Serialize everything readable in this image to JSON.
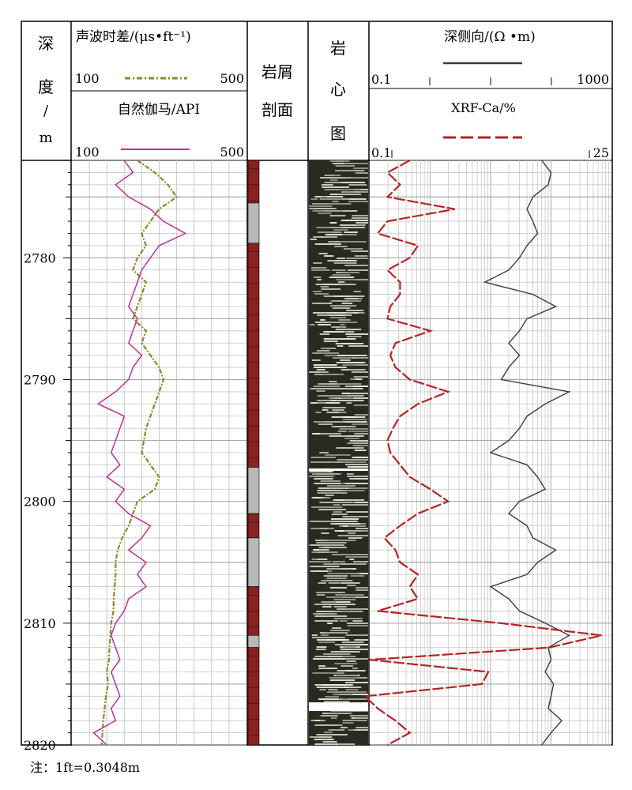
{
  "header": {
    "depth": {
      "lines": [
        "深",
        "度",
        "/",
        "m"
      ]
    },
    "track1": {
      "curve1_title": "声波时差/(μs•ft⁻¹)",
      "curve1_min": "100",
      "curve1_max": "500",
      "curve2_title": "自然伽马/API",
      "curve2_min": "100",
      "curve2_max": "500"
    },
    "cuttings": {
      "lines": [
        "岩屑",
        "剖面"
      ]
    },
    "core": {
      "lines": [
        "岩",
        "心",
        "图"
      ]
    },
    "track4": {
      "curve1_title": "深侧向/(Ω •m)",
      "curve1_min": "0.1",
      "curve1_max": "1000",
      "curve2_title": "XRF-Ca/%",
      "curve2_min": "0.1",
      "curve2_max": "25"
    }
  },
  "footnote": "注：1ft=0.3048m",
  "colors": {
    "acoustic": "#8a8a2a",
    "gamma": "#c0309a",
    "resistivity": "#3c3c3c",
    "xrf_ca": "#b82222",
    "lith_red": "#8a2020",
    "lith_grey": "#b8b8b8",
    "grid": "#c8c8c8"
  },
  "chart_data": {
    "type": "line",
    "depth_axis": {
      "label": "深度/m",
      "range": [
        2772,
        2820
      ],
      "ticks": [
        2780,
        2790,
        2800,
        2810,
        2820
      ]
    },
    "tracks": [
      {
        "name": "track1",
        "scale": "linear",
        "range": [
          100,
          500
        ],
        "series": [
          {
            "name": "声波时差",
            "unit": "μs/ft",
            "depth": [
              2772,
              2773,
              2774,
              2775,
              2776,
              2777,
              2778,
              2779,
              2780,
              2781,
              2782,
              2783,
              2784,
              2785,
              2786,
              2787,
              2788,
              2789,
              2790,
              2791,
              2792,
              2793,
              2794,
              2795,
              2796,
              2797,
              2798,
              2799,
              2800,
              2801,
              2802,
              2803,
              2804,
              2805,
              2806,
              2807,
              2808,
              2809,
              2810,
              2811,
              2812,
              2813,
              2814,
              2815,
              2816,
              2817,
              2818,
              2819,
              2820
            ],
            "values": [
              250,
              290,
              320,
              340,
              300,
              280,
              260,
              270,
              250,
              240,
              270,
              260,
              250,
              240,
              270,
              260,
              280,
              300,
              310,
              300,
              290,
              280,
              270,
              265,
              260,
              280,
              300,
              290,
              250,
              240,
              230,
              215,
              205,
              200,
              200,
              198,
              196,
              195,
              190,
              188,
              186,
              185,
              180,
              183,
              178,
              175,
              172,
              170,
              168
            ]
          },
          {
            "name": "自然伽马",
            "unit": "API",
            "depth": [
              2772,
              2773,
              2774,
              2775,
              2776,
              2777,
              2778,
              2779,
              2780,
              2781,
              2782,
              2783,
              2784,
              2785,
              2786,
              2787,
              2788,
              2789,
              2790,
              2791,
              2792,
              2793,
              2794,
              2795,
              2796,
              2797,
              2798,
              2799,
              2800,
              2801,
              2802,
              2803,
              2804,
              2805,
              2806,
              2807,
              2808,
              2809,
              2810,
              2811,
              2812,
              2813,
              2814,
              2815,
              2816,
              2817,
              2818,
              2819,
              2820
            ],
            "values": [
              220,
              240,
              200,
              230,
              280,
              310,
              360,
              300,
              280,
              260,
              250,
              240,
              230,
              250,
              240,
              230,
              260,
              240,
              230,
              200,
              160,
              220,
              210,
              200,
              190,
              210,
              180,
              220,
              200,
              230,
              280,
              260,
              230,
              270,
              250,
              270,
              230,
              220,
              200,
              190,
              200,
              210,
              190,
              200,
              210,
              190,
              200,
              150,
              180
            ]
          }
        ]
      },
      {
        "name": "track4",
        "scale": "log",
        "series": [
          {
            "name": "深侧向",
            "unit": "Ω·m",
            "range": [
              0.1,
              1000
            ],
            "depth": [
              2772,
              2773,
              2774,
              2775,
              2776,
              2777,
              2778,
              2779,
              2780,
              2781,
              2782,
              2783,
              2784,
              2785,
              2786,
              2787,
              2788,
              2789,
              2790,
              2791,
              2792,
              2793,
              2794,
              2795,
              2796,
              2797,
              2798,
              2799,
              2800,
              2801,
              2802,
              2803,
              2804,
              2805,
              2806,
              2807,
              2808,
              2809,
              2810,
              2811,
              2812,
              2813,
              2814,
              2815,
              2816,
              2817,
              2818,
              2819,
              2820
            ],
            "values": [
              70,
              100,
              90,
              50,
              40,
              50,
              60,
              40,
              30,
              20,
              8,
              50,
              120,
              40,
              30,
              20,
              30,
              20,
              15,
              200,
              80,
              40,
              30,
              20,
              10,
              40,
              60,
              80,
              30,
              20,
              40,
              50,
              120,
              60,
              40,
              10,
              20,
              30,
              80,
              200,
              90,
              100,
              80,
              110,
              100,
              90,
              150,
              100,
              70
            ]
          },
          {
            "name": "XRF-Ca",
            "unit": "%",
            "range": [
              0.1,
              25
            ],
            "depth": [
              2772,
              2773,
              2774,
              2775,
              2776,
              2777,
              2778,
              2779,
              2780,
              2781,
              2782,
              2783,
              2784,
              2785,
              2786,
              2787,
              2788,
              2789,
              2790,
              2791,
              2792,
              2793,
              2794,
              2795,
              2796,
              2797,
              2798,
              2799,
              2800,
              2801,
              2802,
              2803,
              2804,
              2805,
              2806,
              2807,
              2808,
              2809,
              2810,
              2811,
              2812,
              2813,
              2814,
              2815,
              2816,
              2817,
              2818,
              2819,
              2820
            ],
            "values": [
              0.25,
              0.15,
              0.2,
              0.15,
              0.7,
              0.15,
              0.12,
              0.3,
              0.25,
              0.15,
              0.2,
              0.2,
              0.16,
              0.15,
              0.4,
              0.18,
              0.16,
              0.18,
              0.25,
              0.6,
              0.3,
              0.2,
              0.17,
              0.15,
              0.16,
              0.2,
              0.25,
              0.4,
              0.6,
              0.3,
              0.2,
              0.14,
              0.18,
              0.2,
              0.3,
              0.25,
              0.3,
              0.12,
              2.0,
              20,
              6,
              0.1,
              1.5,
              1.3,
              0.09,
              0.12,
              0.18,
              0.25,
              0.15
            ]
          }
        ]
      }
    ],
    "lithology": [
      {
        "top": 2772,
        "bottom": 2775.5,
        "type": "red"
      },
      {
        "top": 2775.5,
        "bottom": 2778.8,
        "type": "grey"
      },
      {
        "top": 2778.8,
        "bottom": 2797.2,
        "type": "red"
      },
      {
        "top": 2797.2,
        "bottom": 2801,
        "type": "grey"
      },
      {
        "top": 2801,
        "bottom": 2803,
        "type": "red"
      },
      {
        "top": 2803,
        "bottom": 2807,
        "type": "grey"
      },
      {
        "top": 2807,
        "bottom": 2811,
        "type": "red"
      },
      {
        "top": 2811,
        "bottom": 2812,
        "type": "grey"
      },
      {
        "top": 2812,
        "bottom": 2820,
        "type": "red"
      }
    ]
  }
}
